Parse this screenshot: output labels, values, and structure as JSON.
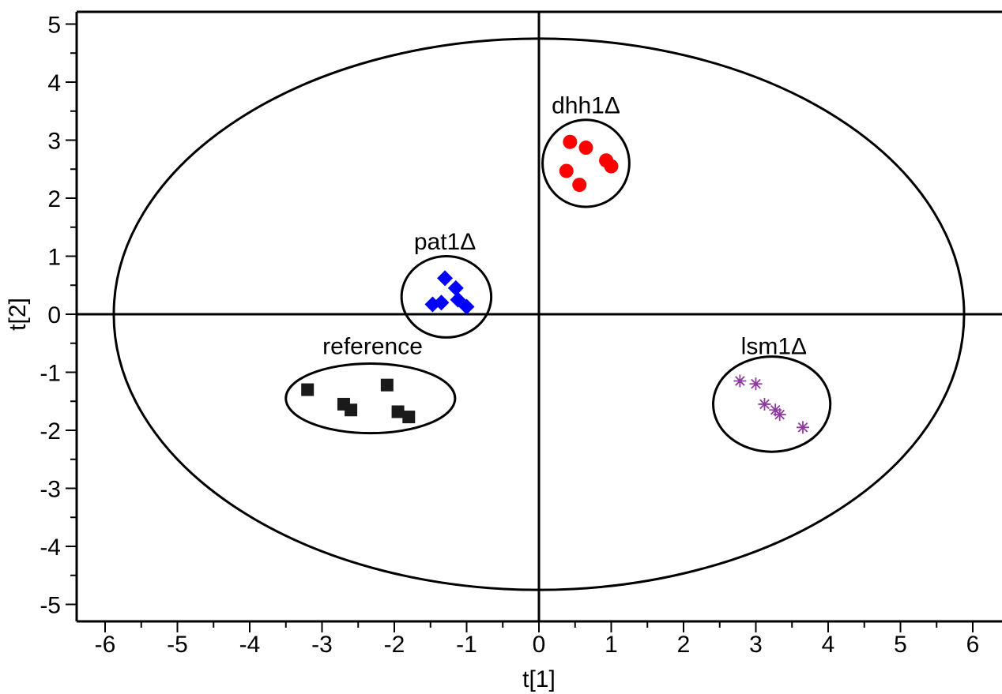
{
  "chart_data": {
    "type": "scatter",
    "title": "",
    "xlabel": "t[1]",
    "ylabel": "t[2]",
    "xlim": [
      -6.5,
      6.5
    ],
    "ylim": [
      -5.3,
      5.2
    ],
    "xticks": [
      -6,
      -5,
      -4,
      -3,
      -2,
      -1,
      0,
      1,
      2,
      3,
      4,
      5,
      6
    ],
    "yticks": [
      -5,
      -4,
      -3,
      -2,
      -1,
      0,
      1,
      2,
      3,
      4,
      5
    ],
    "grid": false,
    "legend": "none",
    "confidence_ellipse": {
      "center": [
        0,
        0
      ],
      "rx": 5.88,
      "ry": 4.75
    },
    "series": [
      {
        "name": "dhh1Δ",
        "marker": "circle",
        "color": "#ff0000",
        "points": [
          [
            0.43,
            2.97
          ],
          [
            0.65,
            2.87
          ],
          [
            0.93,
            2.65
          ],
          [
            1.0,
            2.55
          ],
          [
            0.38,
            2.47
          ],
          [
            0.56,
            2.23
          ]
        ],
        "cluster": {
          "center": [
            0.65,
            2.6
          ],
          "rx": 0.6,
          "ry": 0.75
        }
      },
      {
        "name": "pat1Δ",
        "marker": "diamond",
        "color": "#0000ff",
        "points": [
          [
            -1.3,
            0.62
          ],
          [
            -1.15,
            0.45
          ],
          [
            -1.47,
            0.17
          ],
          [
            -1.35,
            0.2
          ],
          [
            -1.12,
            0.25
          ],
          [
            -1.0,
            0.13
          ]
        ],
        "cluster": {
          "center": [
            -1.28,
            0.3
          ],
          "rx": 0.62,
          "ry": 0.7
        }
      },
      {
        "name": "reference",
        "marker": "square",
        "color": "#1a1a1a",
        "points": [
          [
            -3.2,
            -1.3
          ],
          [
            -2.7,
            -1.55
          ],
          [
            -2.6,
            -1.65
          ],
          [
            -2.1,
            -1.22
          ],
          [
            -1.95,
            -1.68
          ],
          [
            -1.8,
            -1.77
          ]
        ],
        "cluster": {
          "center": [
            -2.33,
            -1.45
          ],
          "rx": 1.17,
          "ry": 0.6
        }
      },
      {
        "name": "lsm1Δ",
        "marker": "asterisk",
        "color": "#8e3b9e",
        "points": [
          [
            2.78,
            -1.15
          ],
          [
            3.0,
            -1.2
          ],
          [
            3.12,
            -1.55
          ],
          [
            3.27,
            -1.65
          ],
          [
            3.33,
            -1.73
          ],
          [
            3.65,
            -1.95
          ]
        ],
        "cluster": {
          "center": [
            3.22,
            -1.55
          ],
          "rx": 0.81,
          "ry": 0.82
        }
      }
    ],
    "labels": [
      {
        "text": "dhh1Δ",
        "x": 0.65,
        "y": 3.6
      },
      {
        "text": "pat1Δ",
        "x": -1.3,
        "y": 1.25
      },
      {
        "text": "reference",
        "x": -2.3,
        "y": -0.55
      },
      {
        "text": "lsm1Δ",
        "x": 3.25,
        "y": -0.55
      }
    ]
  }
}
